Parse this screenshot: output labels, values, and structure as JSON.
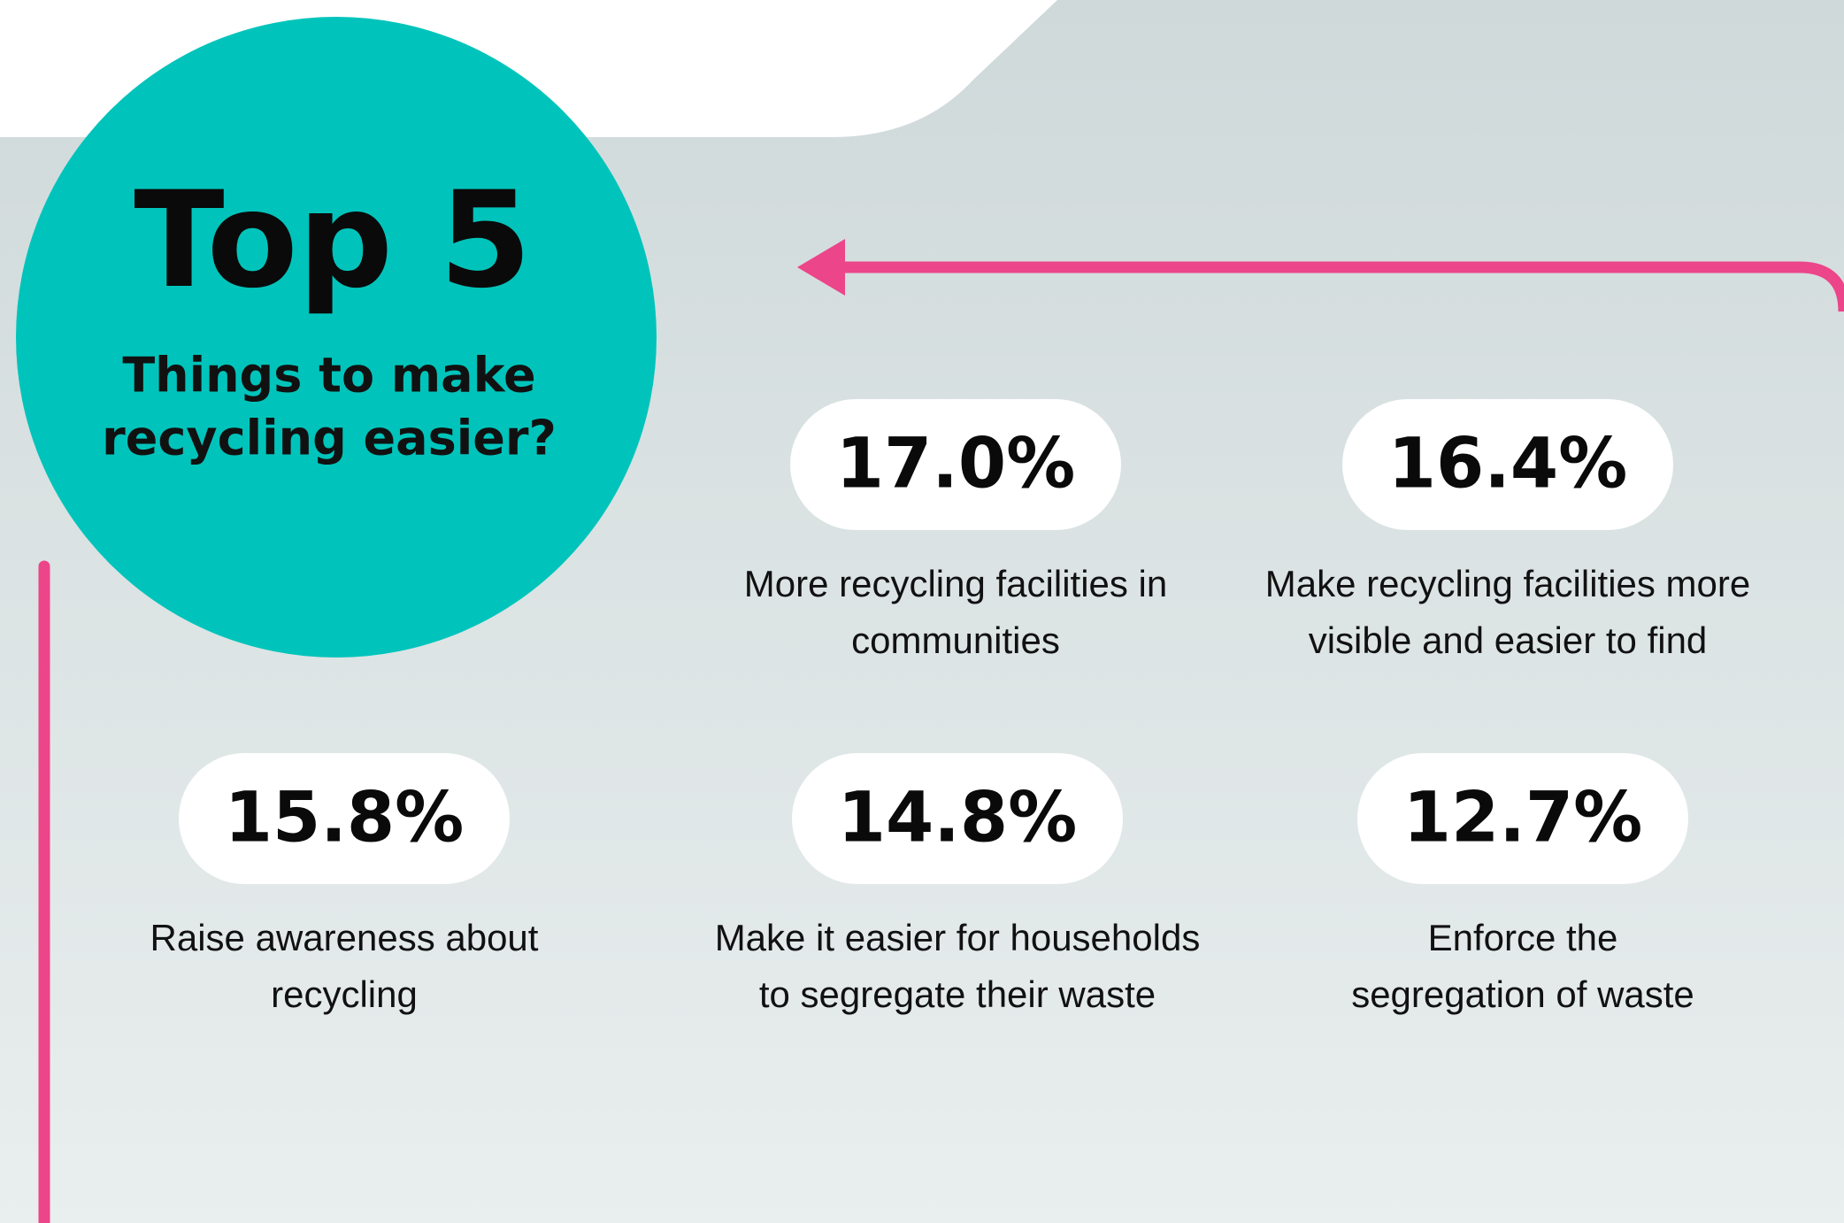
{
  "header": {
    "title": "Top 5",
    "subtitle": [
      "Things to make",
      "recycling easier?"
    ]
  },
  "items": [
    {
      "value": "17.0%",
      "label": [
        "More recycling facilities in",
        "communities"
      ]
    },
    {
      "value": "16.4%",
      "label": [
        "Make recycling facilities more",
        "visible and easier to find"
      ]
    },
    {
      "value": "15.8%",
      "label": [
        "Raise awareness about",
        "recycling"
      ]
    },
    {
      "value": "14.8%",
      "label": [
        "Make it easier for households",
        "to segregate their waste"
      ]
    },
    {
      "value": "12.7%",
      "label": [
        "Enforce the",
        "segregation of waste"
      ]
    }
  ]
}
